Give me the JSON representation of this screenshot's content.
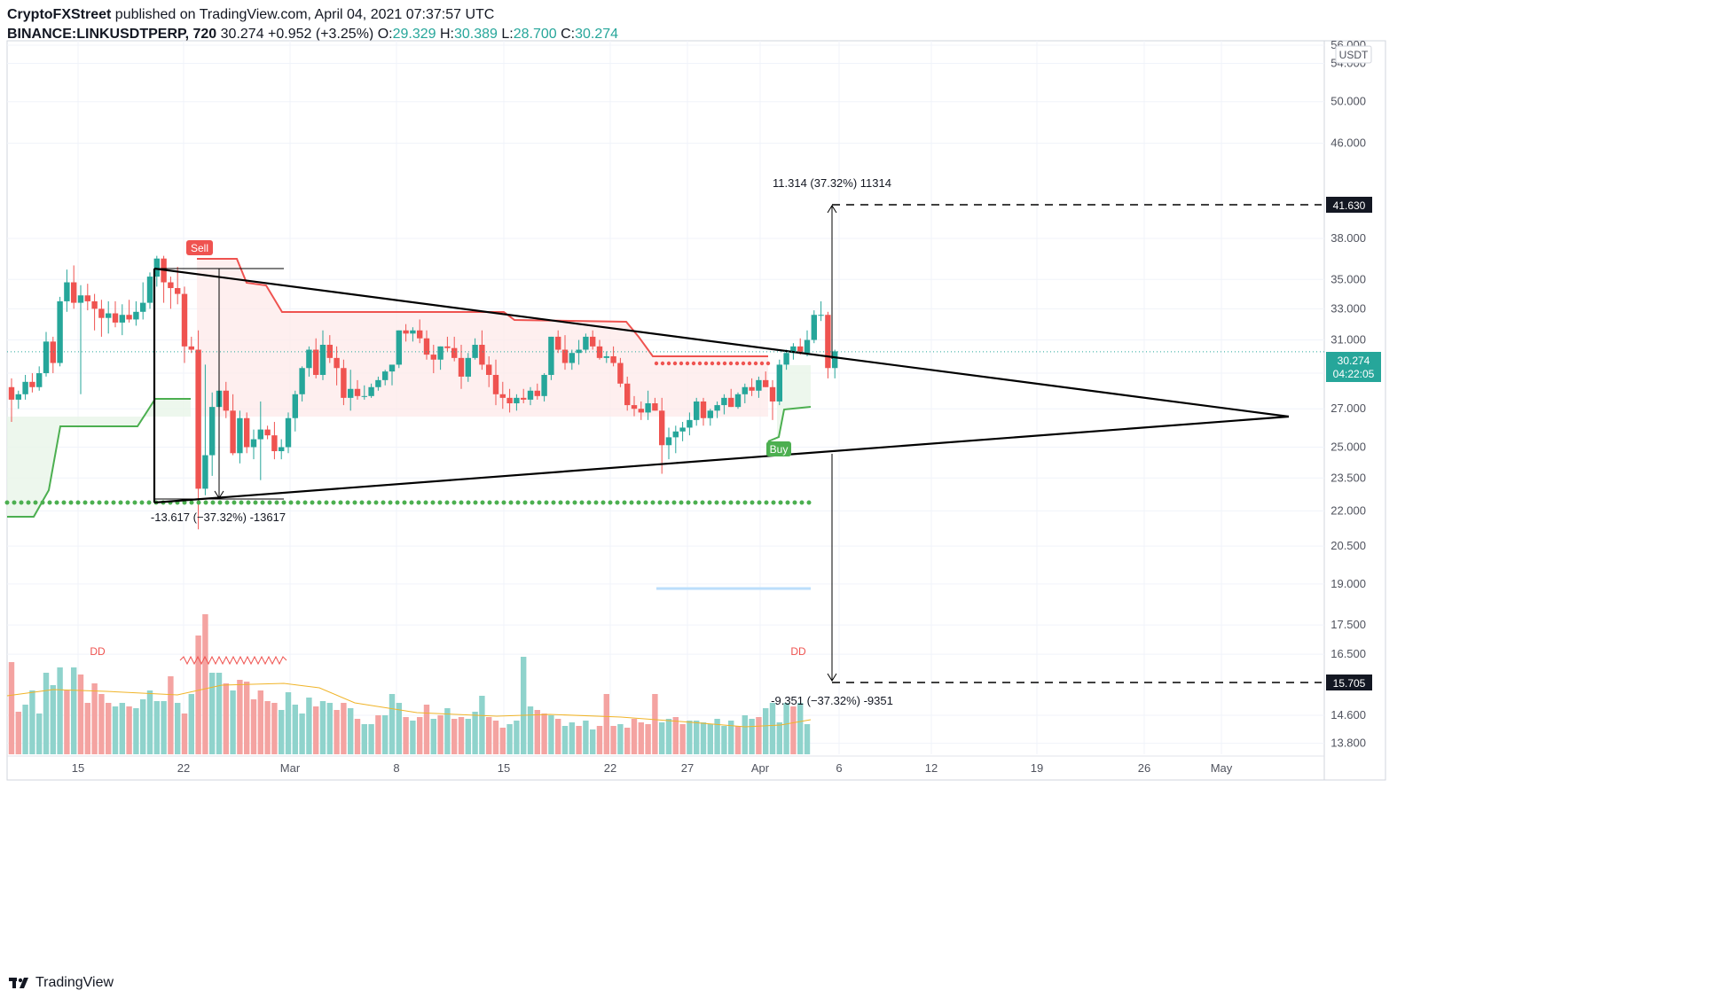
{
  "header": {
    "author": "CryptoFXStreet",
    "published_text": " published on TradingView.com, April 04, 2021 07:37:57 UTC",
    "symbol": "BINANCE:LINKUSDTPERP, 720",
    "last": "30.274",
    "change": "+0.952 (+3.25%)",
    "o_label": "O:",
    "o": "29.329",
    "h_label": "H:",
    "h": "30.389",
    "l_label": "L:",
    "l": "28.700",
    "c_label": "C:",
    "c": "30.274"
  },
  "footer": {
    "brand": "TradingView"
  },
  "colors": {
    "up": "#26a69a",
    "down": "#ef5350",
    "up_vol": "#8fd3cc",
    "down_vol": "#f4a3a1",
    "sell_line": "#ef5350",
    "buy_line": "#4caf50",
    "grid": "#f0f3fa",
    "price_tag": "#26a69a",
    "target_tag": "#131722"
  },
  "chart_data": {
    "type": "candlestick",
    "currency": "USDT",
    "y_scale": "log",
    "ylim": [
      13.5,
      56.5
    ],
    "price_ticks": [
      "56.000",
      "54.000",
      "50.000",
      "46.000",
      "41.630",
      "38.000",
      "35.000",
      "33.000",
      "31.000",
      "30.274",
      "29.000",
      "27.000",
      "25.000",
      "23.500",
      "22.000",
      "20.500",
      "19.000",
      "17.500",
      "16.500",
      "15.705",
      "14.600",
      "13.800"
    ],
    "price_tick_values": [
      56,
      54,
      50,
      46,
      41.63,
      38,
      35,
      33,
      31,
      30.274,
      29,
      27,
      25,
      23.5,
      22,
      20.5,
      19,
      17.5,
      16.5,
      15.705,
      14.6,
      13.8
    ],
    "date_labels": [
      "15",
      "22",
      "Mar",
      "8",
      "15",
      "22",
      "27",
      "Apr",
      "6",
      "12",
      "19",
      "26",
      "May"
    ],
    "date_offsets": [
      5,
      12,
      19,
      26,
      33,
      40,
      45,
      50,
      55,
      61,
      68,
      75,
      80
    ],
    "last_price": "30.274",
    "countdown": "04:22:05",
    "upper_target": "41.630",
    "lower_target": "15.705",
    "upper_measure": "11.314 (37.32%) 11314",
    "lower_measure": "-9.351 (−37.32%) -9351",
    "flagpole_measure": "-13.617 (−37.32%) -13617",
    "sell_label": "Sell",
    "buy_label": "Buy",
    "volume_flag": "DD",
    "candles": [
      [
        28.2,
        28.7,
        26.3,
        27.5
      ],
      [
        27.5,
        28.0,
        27.0,
        27.8
      ],
      [
        27.8,
        28.9,
        27.5,
        28.5
      ],
      [
        28.5,
        29.0,
        27.9,
        28.2
      ],
      [
        28.2,
        29.4,
        28.0,
        29.0
      ],
      [
        29.0,
        31.5,
        28.8,
        30.9
      ],
      [
        30.9,
        31.2,
        29.0,
        29.6
      ],
      [
        29.6,
        33.8,
        29.4,
        33.5
      ],
      [
        33.5,
        35.7,
        32.8,
        34.8
      ],
      [
        34.8,
        36.0,
        33.0,
        33.4
      ],
      [
        33.4,
        34.6,
        27.8,
        33.9
      ],
      [
        33.9,
        34.7,
        32.9,
        33.5
      ],
      [
        33.5,
        34.0,
        31.6,
        33.0
      ],
      [
        33.0,
        33.6,
        31.2,
        32.4
      ],
      [
        32.4,
        33.5,
        31.4,
        32.7
      ],
      [
        32.7,
        33.5,
        31.8,
        32.1
      ],
      [
        32.1,
        33.3,
        31.3,
        32.6
      ],
      [
        32.6,
        33.6,
        32.1,
        32.3
      ],
      [
        32.3,
        33.5,
        31.9,
        32.8
      ],
      [
        32.8,
        34.8,
        32.3,
        33.4
      ],
      [
        33.4,
        35.5,
        33.0,
        35.2
      ],
      [
        35.2,
        36.7,
        34.5,
        36.5
      ],
      [
        36.5,
        36.7,
        33.4,
        34.8
      ],
      [
        34.8,
        35.2,
        33.0,
        34.4
      ],
      [
        34.4,
        35.9,
        33.3,
        34.0
      ],
      [
        34.0,
        34.5,
        29.6,
        30.6
      ],
      [
        30.6,
        31.2,
        30.2,
        30.4
      ],
      [
        30.4,
        31.6,
        21.2,
        23.0
      ],
      [
        23.0,
        29.5,
        22.7,
        24.6
      ],
      [
        24.6,
        27.9,
        23.6,
        27.1
      ],
      [
        27.1,
        28.5,
        26.6,
        28.0
      ],
      [
        28.0,
        28.5,
        26.5,
        26.9
      ],
      [
        26.9,
        27.8,
        24.6,
        24.7
      ],
      [
        24.7,
        26.9,
        24.2,
        26.5
      ],
      [
        26.5,
        26.8,
        24.7,
        25.0
      ],
      [
        25.0,
        25.9,
        24.4,
        25.4
      ],
      [
        25.4,
        27.4,
        23.4,
        25.9
      ],
      [
        25.9,
        26.1,
        25.4,
        25.6
      ],
      [
        25.6,
        26.3,
        24.4,
        24.8
      ],
      [
        24.8,
        25.4,
        24.4,
        25.0
      ],
      [
        25.0,
        26.8,
        24.7,
        26.5
      ],
      [
        26.5,
        28.0,
        25.8,
        27.8
      ],
      [
        27.8,
        29.4,
        27.4,
        29.3
      ],
      [
        29.3,
        30.6,
        28.8,
        30.4
      ],
      [
        30.4,
        31.1,
        28.7,
        28.9
      ],
      [
        28.9,
        31.6,
        28.6,
        30.7
      ],
      [
        30.7,
        31.3,
        29.6,
        29.9
      ],
      [
        29.9,
        30.6,
        28.3,
        29.3
      ],
      [
        29.3,
        29.8,
        27.2,
        27.6
      ],
      [
        27.6,
        29.2,
        26.9,
        28.1
      ],
      [
        28.1,
        28.6,
        27.5,
        27.7
      ],
      [
        27.7,
        28.3,
        27.5,
        27.7
      ],
      [
        27.7,
        28.4,
        27.6,
        28.2
      ],
      [
        28.2,
        28.8,
        28.0,
        28.6
      ],
      [
        28.6,
        29.2,
        28.3,
        29.1
      ],
      [
        29.1,
        29.4,
        28.3,
        29.5
      ],
      [
        29.5,
        31.6,
        29.3,
        31.6
      ],
      [
        31.6,
        32.0,
        30.9,
        31.4
      ],
      [
        31.4,
        31.8,
        30.9,
        31.6
      ],
      [
        31.6,
        32.3,
        30.8,
        31.1
      ],
      [
        31.1,
        31.6,
        29.8,
        30.1
      ],
      [
        30.1,
        30.7,
        29.0,
        29.8
      ],
      [
        29.8,
        30.6,
        29.2,
        30.6
      ],
      [
        30.6,
        31.2,
        30.3,
        30.5
      ],
      [
        30.5,
        31.2,
        29.7,
        29.9
      ],
      [
        29.9,
        30.7,
        28.1,
        28.8
      ],
      [
        28.8,
        30.2,
        28.5,
        29.9
      ],
      [
        29.9,
        31.1,
        29.8,
        30.7
      ],
      [
        30.7,
        31.6,
        29.2,
        29.5
      ],
      [
        29.5,
        30.0,
        28.2,
        28.9
      ],
      [
        28.9,
        29.8,
        27.2,
        27.8
      ],
      [
        27.8,
        28.5,
        27.0,
        27.6
      ],
      [
        27.6,
        28.1,
        26.8,
        27.3
      ],
      [
        27.3,
        27.8,
        26.9,
        27.6
      ],
      [
        27.6,
        28.1,
        27.3,
        27.5
      ],
      [
        27.5,
        28.2,
        27.2,
        28.0
      ],
      [
        28.0,
        28.4,
        27.5,
        27.7
      ],
      [
        27.7,
        29.0,
        27.4,
        28.9
      ],
      [
        28.9,
        31.2,
        28.6,
        31.2
      ],
      [
        31.2,
        31.6,
        30.2,
        30.4
      ],
      [
        30.4,
        31.3,
        29.2,
        29.6
      ],
      [
        29.6,
        30.4,
        29.2,
        30.2
      ],
      [
        30.2,
        31.0,
        29.5,
        30.4
      ],
      [
        30.4,
        31.4,
        30.2,
        31.2
      ],
      [
        31.2,
        31.6,
        30.4,
        30.6
      ],
      [
        30.6,
        31.0,
        29.8,
        29.9
      ],
      [
        29.9,
        30.3,
        29.6,
        30.0
      ],
      [
        30.0,
        30.6,
        29.4,
        29.6
      ],
      [
        29.6,
        29.9,
        28.2,
        28.4
      ],
      [
        28.4,
        28.8,
        26.9,
        27.2
      ],
      [
        27.2,
        27.7,
        26.6,
        27.0
      ],
      [
        27.0,
        27.4,
        26.4,
        26.8
      ],
      [
        26.8,
        28.0,
        26.4,
        27.3
      ],
      [
        27.3,
        27.6,
        26.9,
        26.9
      ],
      [
        26.9,
        27.6,
        23.7,
        25.1
      ],
      [
        25.1,
        26.0,
        24.4,
        25.5
      ],
      [
        25.5,
        26.1,
        24.7,
        25.8
      ],
      [
        25.8,
        26.3,
        25.3,
        26.0
      ],
      [
        26.0,
        26.8,
        25.6,
        26.4
      ],
      [
        26.4,
        27.6,
        26.1,
        27.4
      ],
      [
        27.4,
        27.6,
        26.1,
        26.5
      ],
      [
        26.5,
        27.0,
        26.1,
        26.9
      ],
      [
        26.9,
        27.4,
        26.5,
        27.2
      ],
      [
        27.2,
        27.8,
        26.7,
        27.6
      ],
      [
        27.6,
        28.1,
        27.1,
        27.1
      ],
      [
        27.1,
        27.9,
        27.0,
        27.8
      ],
      [
        27.8,
        28.4,
        27.3,
        28.2
      ],
      [
        28.2,
        28.7,
        27.7,
        28.0
      ],
      [
        28.0,
        28.8,
        27.6,
        28.6
      ],
      [
        28.6,
        29.1,
        28.2,
        28.2
      ],
      [
        28.2,
        28.6,
        26.4,
        27.4
      ],
      [
        27.4,
        29.8,
        27.2,
        29.5
      ],
      [
        29.5,
        30.4,
        29.2,
        30.2
      ],
      [
        30.2,
        30.8,
        29.8,
        30.6
      ],
      [
        30.6,
        31.1,
        30.1,
        30.2
      ],
      [
        30.2,
        31.6,
        30.0,
        31.0
      ],
      [
        31.0,
        32.9,
        30.8,
        32.6
      ],
      [
        32.6,
        33.5,
        32.2,
        32.6
      ],
      [
        32.6,
        32.8,
        28.7,
        29.3
      ],
      [
        29.3,
        30.4,
        28.7,
        30.3
      ]
    ],
    "volume_scale": [
      0,
      1
    ],
    "volumes": [
      [
        0.52,
        0
      ],
      [
        0.24,
        0
      ],
      [
        0.28,
        1
      ],
      [
        0.36,
        1
      ],
      [
        0.23,
        1
      ],
      [
        0.46,
        1
      ],
      [
        0.39,
        1
      ],
      [
        0.49,
        1
      ],
      [
        0.36,
        0
      ],
      [
        0.49,
        1
      ],
      [
        0.45,
        0
      ],
      [
        0.29,
        0
      ],
      [
        0.4,
        0
      ],
      [
        0.34,
        0
      ],
      [
        0.29,
        0
      ],
      [
        0.27,
        1
      ],
      [
        0.29,
        1
      ],
      [
        0.27,
        0
      ],
      [
        0.26,
        1
      ],
      [
        0.31,
        1
      ],
      [
        0.36,
        1
      ],
      [
        0.3,
        1
      ],
      [
        0.3,
        1
      ],
      [
        0.44,
        0
      ],
      [
        0.29,
        1
      ],
      [
        0.23,
        0
      ],
      [
        0.34,
        1
      ],
      [
        0.67,
        0
      ],
      [
        0.79,
        0
      ],
      [
        0.46,
        1
      ],
      [
        0.46,
        1
      ],
      [
        0.4,
        0
      ],
      [
        0.36,
        1
      ],
      [
        0.42,
        0
      ],
      [
        0.41,
        0
      ],
      [
        0.31,
        0
      ],
      [
        0.36,
        0
      ],
      [
        0.3,
        0
      ],
      [
        0.29,
        0
      ],
      [
        0.25,
        1
      ],
      [
        0.35,
        1
      ],
      [
        0.28,
        1
      ],
      [
        0.23,
        1
      ],
      [
        0.32,
        1
      ],
      [
        0.27,
        0
      ],
      [
        0.3,
        1
      ],
      [
        0.29,
        1
      ],
      [
        0.25,
        0
      ],
      [
        0.29,
        0
      ],
      [
        0.26,
        1
      ],
      [
        0.2,
        0
      ],
      [
        0.17,
        1
      ],
      [
        0.17,
        1
      ],
      [
        0.22,
        0
      ],
      [
        0.22,
        1
      ],
      [
        0.34,
        1
      ],
      [
        0.29,
        1
      ],
      [
        0.21,
        0
      ],
      [
        0.19,
        1
      ],
      [
        0.21,
        0
      ],
      [
        0.28,
        0
      ],
      [
        0.2,
        1
      ],
      [
        0.22,
        0
      ],
      [
        0.26,
        1
      ],
      [
        0.2,
        0
      ],
      [
        0.21,
        0
      ],
      [
        0.2,
        1
      ],
      [
        0.24,
        1
      ],
      [
        0.33,
        1
      ],
      [
        0.21,
        0
      ],
      [
        0.19,
        0
      ],
      [
        0.15,
        0
      ],
      [
        0.17,
        1
      ],
      [
        0.19,
        1
      ],
      [
        0.55,
        1
      ],
      [
        0.27,
        1
      ],
      [
        0.25,
        0
      ],
      [
        0.23,
        0
      ],
      [
        0.22,
        1
      ],
      [
        0.2,
        0
      ],
      [
        0.16,
        1
      ],
      [
        0.18,
        1
      ],
      [
        0.16,
        0
      ],
      [
        0.19,
        1
      ],
      [
        0.14,
        1
      ],
      [
        0.16,
        0
      ],
      [
        0.34,
        0
      ],
      [
        0.16,
        0
      ],
      [
        0.17,
        1
      ],
      [
        0.15,
        0
      ],
      [
        0.2,
        0
      ],
      [
        0.18,
        0
      ],
      [
        0.17,
        0
      ],
      [
        0.34,
        0
      ],
      [
        0.18,
        1
      ],
      [
        0.2,
        1
      ],
      [
        0.21,
        0
      ],
      [
        0.17,
        0
      ],
      [
        0.19,
        1
      ],
      [
        0.19,
        1
      ],
      [
        0.18,
        1
      ],
      [
        0.17,
        1
      ],
      [
        0.2,
        1
      ],
      [
        0.16,
        1
      ],
      [
        0.19,
        1
      ],
      [
        0.16,
        0
      ],
      [
        0.22,
        1
      ],
      [
        0.2,
        1
      ],
      [
        0.21,
        0
      ],
      [
        0.26,
        1
      ],
      [
        0.29,
        1
      ],
      [
        0.18,
        1
      ],
      [
        0.29,
        1
      ],
      [
        0.27,
        0
      ],
      [
        0.29,
        1
      ],
      [
        0.17,
        1
      ]
    ]
  }
}
